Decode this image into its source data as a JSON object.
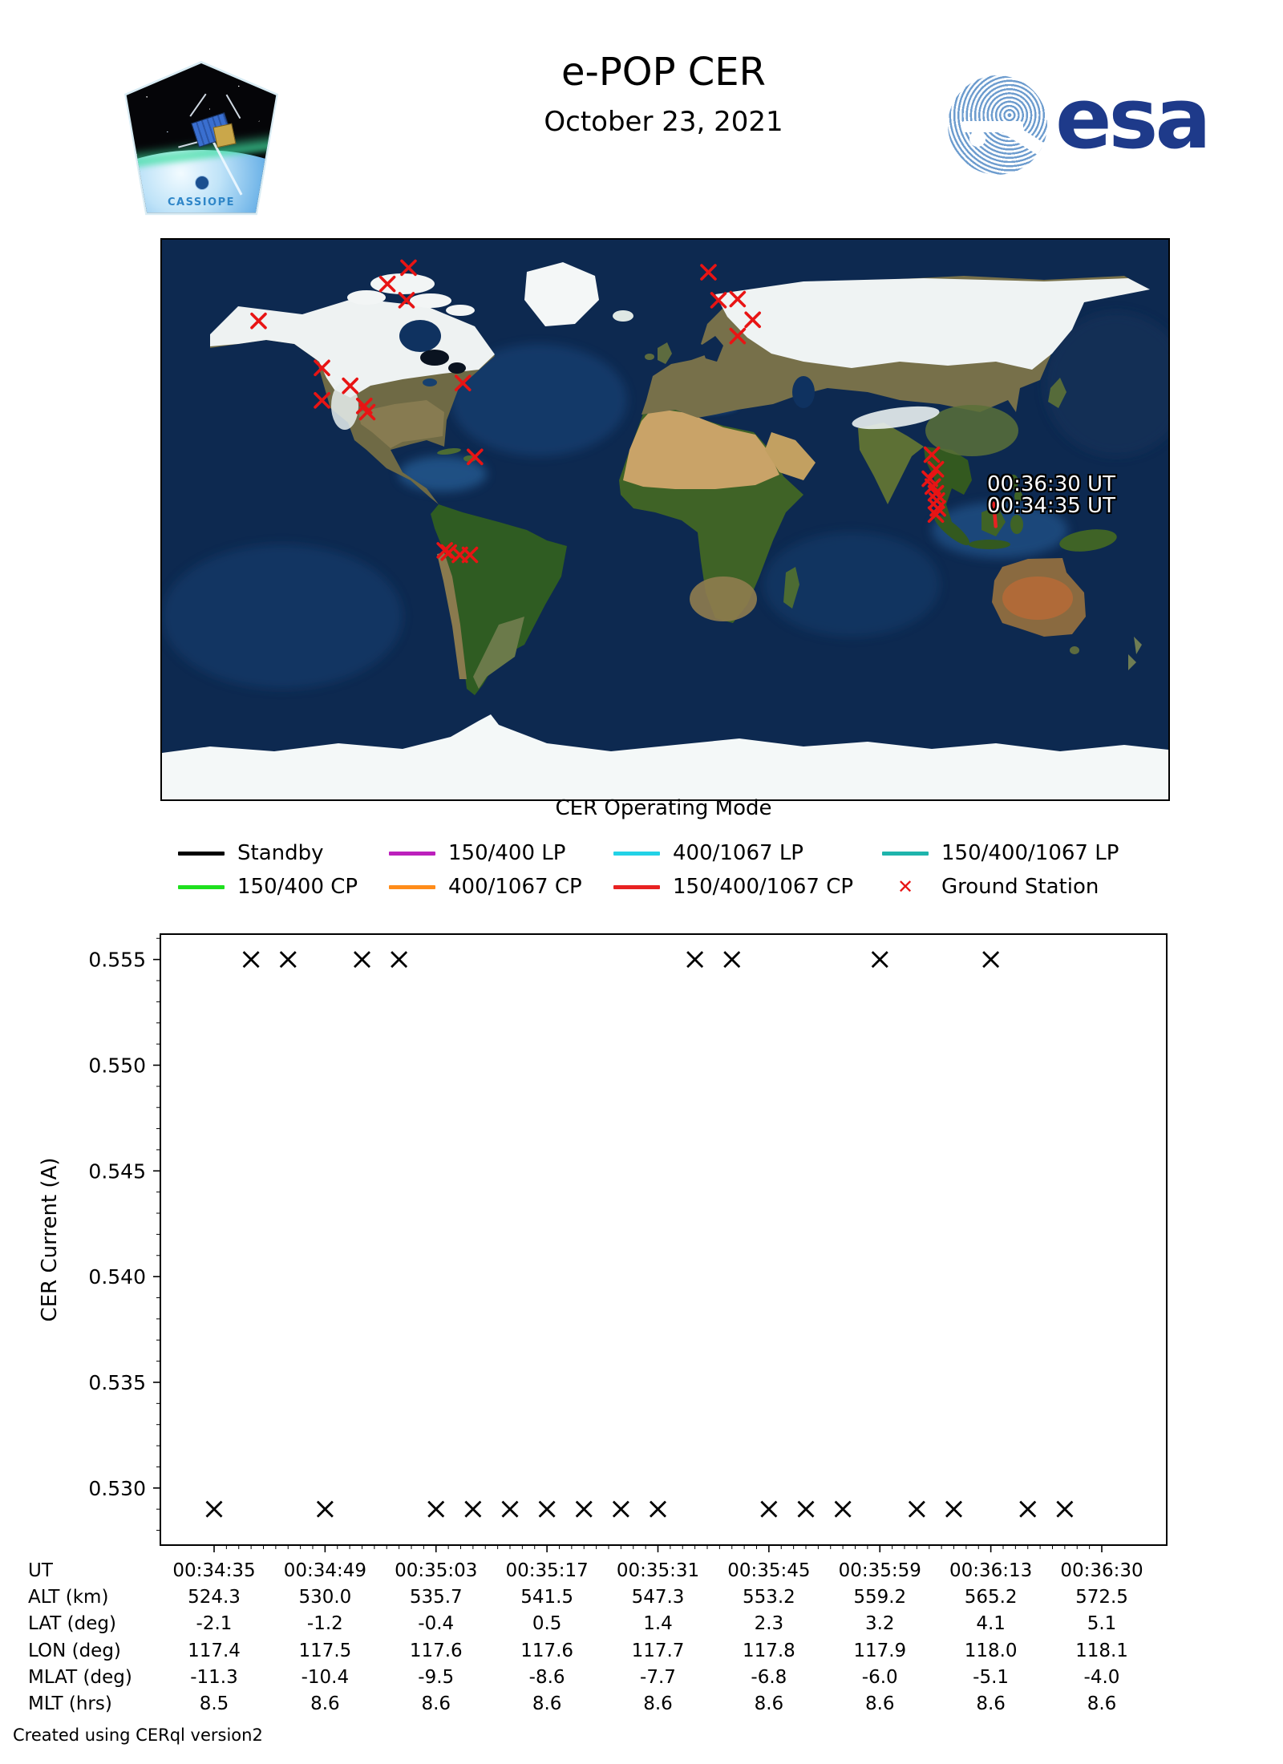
{
  "header": {
    "title": "e-POP CER",
    "date": "October 23, 2021",
    "mission_patch_text": "CASSIOPE",
    "esa_logo_text": "esa"
  },
  "map": {
    "annotations": [
      "00:36:30 UT",
      "00:34:35 UT"
    ],
    "ground_station_color": "#e81414",
    "track_color": "#e82222",
    "ground_stations": [
      {
        "fx": 0.245,
        "fy": 0.05
      },
      {
        "fx": 0.224,
        "fy": 0.079
      },
      {
        "fx": 0.243,
        "fy": 0.108
      },
      {
        "fx": 0.096,
        "fy": 0.145
      },
      {
        "fx": 0.159,
        "fy": 0.229
      },
      {
        "fx": 0.187,
        "fy": 0.261
      },
      {
        "fx": 0.159,
        "fy": 0.287
      },
      {
        "fx": 0.201,
        "fy": 0.297
      },
      {
        "fx": 0.204,
        "fy": 0.308
      },
      {
        "fx": 0.299,
        "fy": 0.256
      },
      {
        "fx": 0.311,
        "fy": 0.388
      },
      {
        "fx": 0.281,
        "fy": 0.555
      },
      {
        "fx": 0.285,
        "fy": 0.559
      },
      {
        "fx": 0.296,
        "fy": 0.563
      },
      {
        "fx": 0.306,
        "fy": 0.563
      },
      {
        "fx": 0.543,
        "fy": 0.058
      },
      {
        "fx": 0.553,
        "fy": 0.108
      },
      {
        "fx": 0.572,
        "fy": 0.106
      },
      {
        "fx": 0.587,
        "fy": 0.143
      },
      {
        "fx": 0.572,
        "fy": 0.172
      },
      {
        "fx": 0.765,
        "fy": 0.384
      },
      {
        "fx": 0.769,
        "fy": 0.41
      },
      {
        "fx": 0.763,
        "fy": 0.427
      },
      {
        "fx": 0.766,
        "fy": 0.441
      },
      {
        "fx": 0.769,
        "fy": 0.453
      },
      {
        "fx": 0.77,
        "fy": 0.466
      },
      {
        "fx": 0.771,
        "fy": 0.48
      },
      {
        "fx": 0.769,
        "fy": 0.491
      }
    ],
    "track_segment": {
      "fx1": 0.8265,
      "fy1": 0.471,
      "fx2": 0.8285,
      "fy2": 0.512
    }
  },
  "legend": {
    "title": "CER Operating Mode",
    "items": [
      {
        "label": "Standby",
        "color": "#000000",
        "marker": "line"
      },
      {
        "label": "150/400 LP",
        "color": "#bc20bc",
        "marker": "line"
      },
      {
        "label": "400/1067 LP",
        "color": "#22d2e6",
        "marker": "line"
      },
      {
        "label": "150/400/1067 LP",
        "color": "#1eb4ac",
        "marker": "line"
      },
      {
        "label": "150/400 CP",
        "color": "#1fe01f",
        "marker": "line"
      },
      {
        "label": "400/1067 CP",
        "color": "#ff8c1a",
        "marker": "line"
      },
      {
        "label": "150/400/1067 CP",
        "color": "#e82222",
        "marker": "line"
      },
      {
        "label": "Ground Station",
        "color": "#e81414",
        "marker": "x"
      }
    ]
  },
  "chart_data": {
    "type": "scatter",
    "title": "",
    "xlabel": "UT",
    "ylabel": "CER Current (A)",
    "marker": "x",
    "marker_color": "#000000",
    "ylim": [
      0.5273,
      0.5562
    ],
    "yticks": [
      "0.530",
      "0.535",
      "0.540",
      "0.545",
      "0.550",
      "0.555"
    ],
    "y_minor_step": 0.001,
    "xtick_labels": [
      "00:34:35",
      "00:34:49",
      "00:35:03",
      "00:35:17",
      "00:35:31",
      "00:35:45",
      "00:35:59",
      "00:36:13",
      "00:36:30"
    ],
    "xtick_positions": [
      0,
      3,
      6,
      9,
      12,
      15,
      18,
      21,
      24
    ],
    "x_index_max": 24,
    "high_value": 0.555,
    "low_value": 0.529,
    "points": [
      {
        "i": 0,
        "y": 0.529
      },
      {
        "i": 1,
        "y": 0.555
      },
      {
        "i": 2,
        "y": 0.555
      },
      {
        "i": 3,
        "y": 0.529
      },
      {
        "i": 4,
        "y": 0.555
      },
      {
        "i": 5,
        "y": 0.555
      },
      {
        "i": 6,
        "y": 0.529
      },
      {
        "i": 7,
        "y": 0.529
      },
      {
        "i": 8,
        "y": 0.529
      },
      {
        "i": 9,
        "y": 0.529
      },
      {
        "i": 10,
        "y": 0.529
      },
      {
        "i": 11,
        "y": 0.529
      },
      {
        "i": 12,
        "y": 0.529
      },
      {
        "i": 13,
        "y": 0.555
      },
      {
        "i": 14,
        "y": 0.555
      },
      {
        "i": 15,
        "y": 0.529
      },
      {
        "i": 16,
        "y": 0.529
      },
      {
        "i": 17,
        "y": 0.529
      },
      {
        "i": 18,
        "y": 0.555
      },
      {
        "i": 19,
        "y": 0.529
      },
      {
        "i": 20,
        "y": 0.529
      },
      {
        "i": 21,
        "y": 0.555
      },
      {
        "i": 22,
        "y": 0.529
      },
      {
        "i": 23,
        "y": 0.529
      }
    ],
    "legend_title": "CER Operating Mode",
    "grid": false
  },
  "table": {
    "rows": [
      {
        "label": "UT",
        "values": [
          "00:34:35",
          "00:34:49",
          "00:35:03",
          "00:35:17",
          "00:35:31",
          "00:35:45",
          "00:35:59",
          "00:36:13",
          "00:36:30"
        ]
      },
      {
        "label": "ALT (km)",
        "values": [
          "524.3",
          "530.0",
          "535.7",
          "541.5",
          "547.3",
          "553.2",
          "559.2",
          "565.2",
          "572.5"
        ]
      },
      {
        "label": "LAT (deg)",
        "values": [
          "-2.1",
          "-1.2",
          "-0.4",
          "0.5",
          "1.4",
          "2.3",
          "3.2",
          "4.1",
          "5.1"
        ]
      },
      {
        "label": "LON (deg)",
        "values": [
          "117.4",
          "117.5",
          "117.6",
          "117.6",
          "117.7",
          "117.8",
          "117.9",
          "118.0",
          "118.1"
        ]
      },
      {
        "label": "MLAT (deg)",
        "values": [
          "-11.3",
          "-10.4",
          "-9.5",
          "-8.6",
          "-7.7",
          "-6.8",
          "-6.0",
          "-5.1",
          "-4.0"
        ]
      },
      {
        "label": "MLT (hrs)",
        "values": [
          "8.5",
          "8.6",
          "8.6",
          "8.6",
          "8.6",
          "8.6",
          "8.6",
          "8.6",
          "8.6"
        ]
      }
    ]
  },
  "footer": {
    "credit": "Created using CERql version2"
  }
}
